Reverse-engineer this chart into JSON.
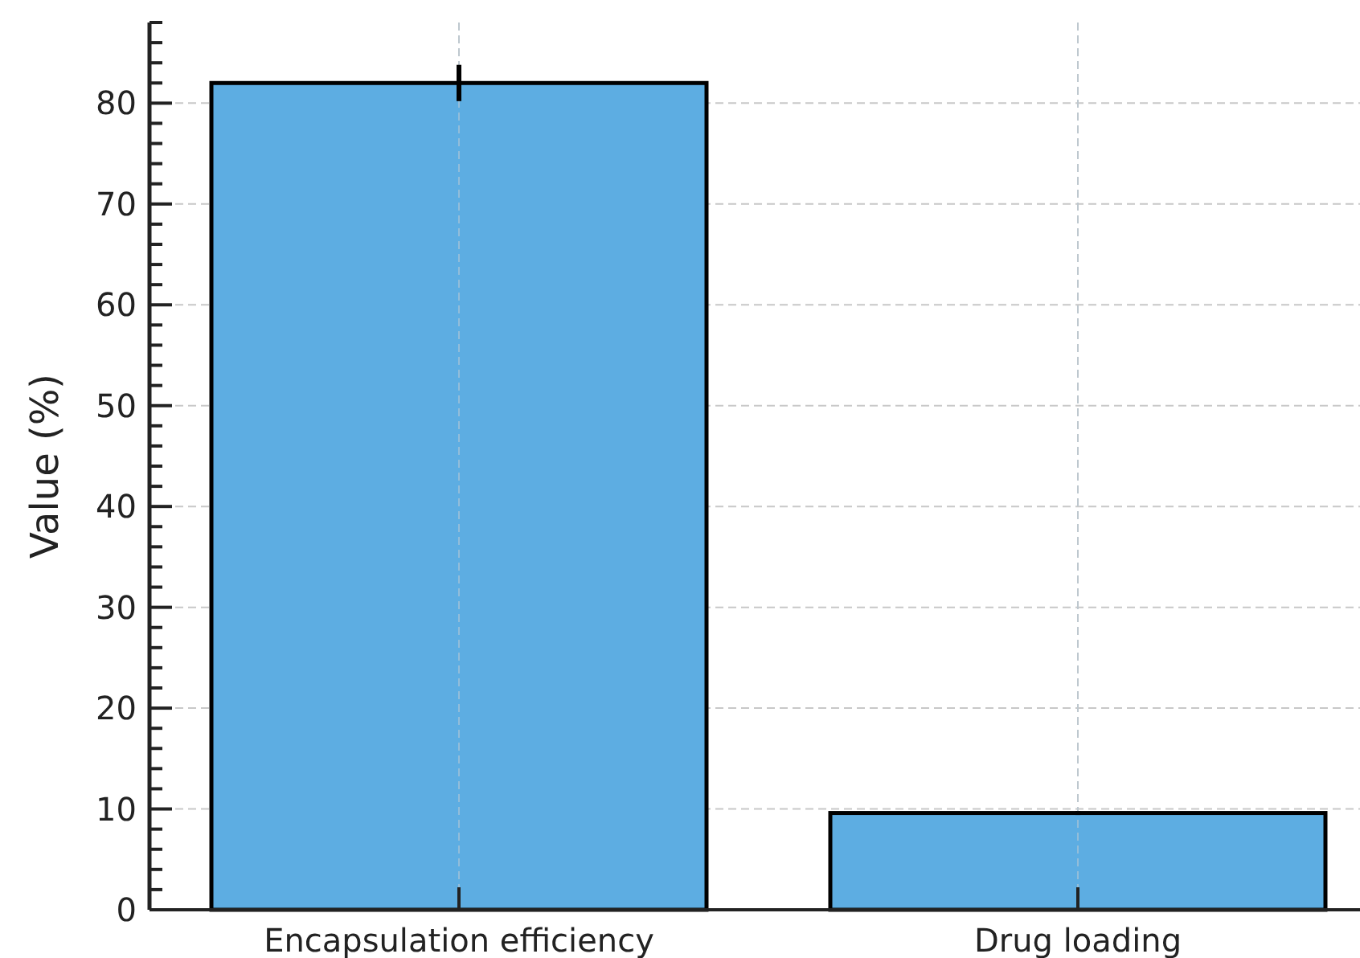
{
  "chart_data": {
    "type": "bar",
    "ylabel": "Value (%)",
    "categories": [
      "Encapsulation efficiency",
      "Drug loading"
    ],
    "values": [
      82,
      9.6
    ],
    "errors": [
      1.8,
      0.2
    ],
    "color": "#5dade2",
    "ylim": [
      0,
      88
    ],
    "yticks": [
      0,
      {
        "value": 2,
        "label": null
      },
      {
        "value": 4,
        "label": null
      },
      {
        "value": 6,
        "label": null
      },
      {
        "value": 8,
        "label": null
      },
      10,
      {
        "value": 12,
        "label": null
      },
      {
        "value": 14,
        "label": null
      },
      {
        "value": 16,
        "label": null
      },
      {
        "value": 18,
        "label": null
      },
      20,
      {
        "value": 22,
        "label": null
      },
      {
        "value": 24,
        "label": null
      },
      {
        "value": 26,
        "label": null
      },
      {
        "value": 28,
        "label": null
      },
      30,
      {
        "value": 32,
        "label": null
      },
      {
        "value": 34,
        "label": null
      },
      {
        "value": 36,
        "label": null
      },
      {
        "value": 38,
        "label": null
      },
      40,
      {
        "value": 42,
        "label": null
      },
      {
        "value": 44,
        "label": null
      },
      {
        "value": 46,
        "label": null
      },
      {
        "value": 48,
        "label": null
      },
      50,
      {
        "value": 52,
        "label": null
      },
      {
        "value": 54,
        "label": null
      },
      {
        "value": 56,
        "label": null
      },
      {
        "value": 58,
        "label": null
      },
      60,
      {
        "value": 62,
        "label": null
      },
      {
        "value": 64,
        "label": null
      },
      {
        "value": 66,
        "label": null
      },
      {
        "value": 68,
        "label": null
      },
      70,
      {
        "value": 72,
        "label": null
      },
      {
        "value": 74,
        "label": null
      },
      {
        "value": 76,
        "label": null
      },
      {
        "value": 78,
        "label": null
      },
      80,
      {
        "value": 82,
        "label": null
      },
      {
        "value": 84,
        "label": null
      },
      {
        "value": 86,
        "label": null
      },
      {
        "value": 88,
        "label": null
      }
    ],
    "grid": true
  }
}
